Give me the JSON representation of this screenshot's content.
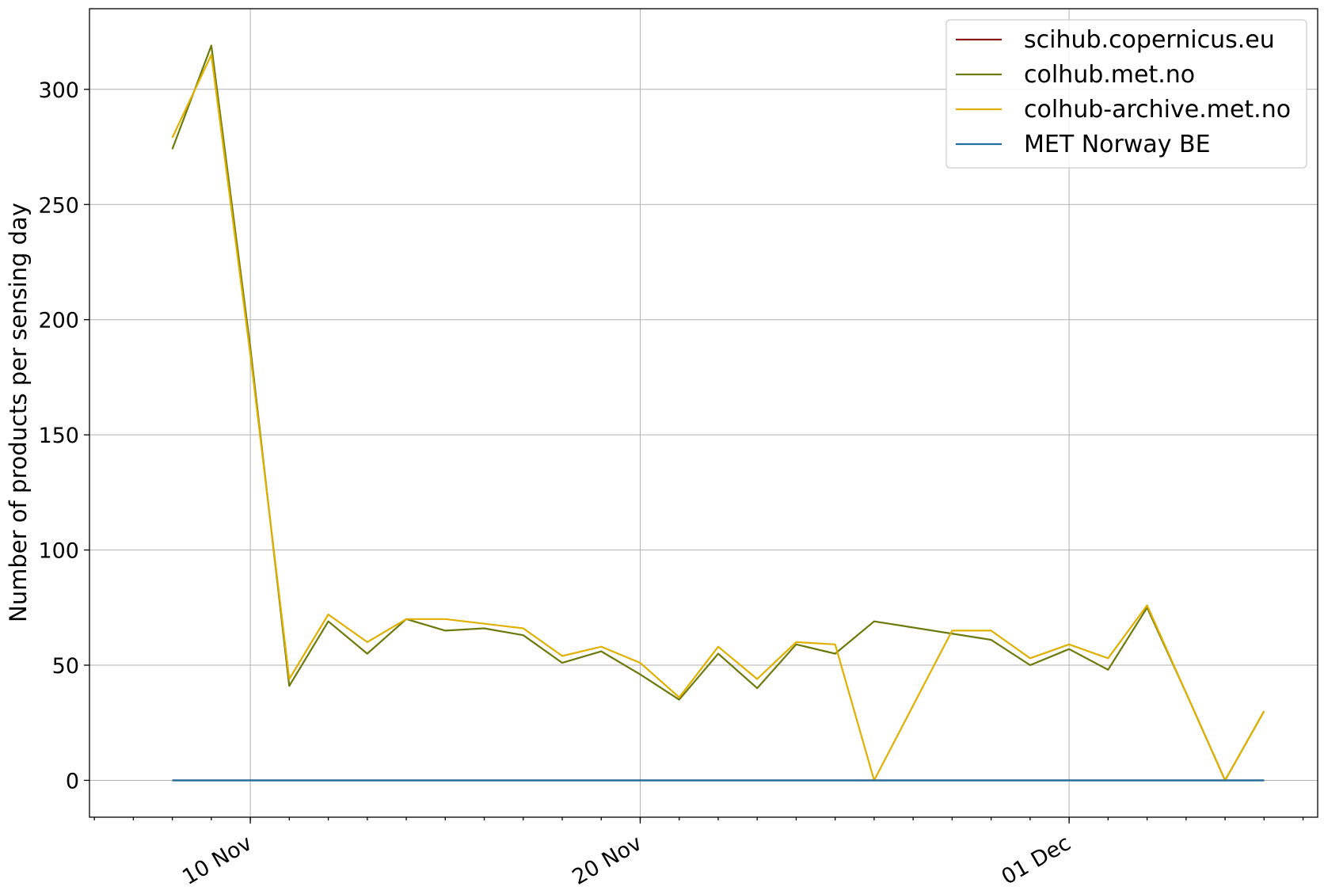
{
  "chart_data": {
    "type": "line",
    "title": "",
    "xlabel": "",
    "ylabel": "Number of products per sensing day",
    "x": [
      "2021-11-08",
      "2021-11-09",
      "2021-11-10",
      "2021-11-11",
      "2021-11-12",
      "2021-11-13",
      "2021-11-14",
      "2021-11-15",
      "2021-11-16",
      "2021-11-17",
      "2021-11-18",
      "2021-11-19",
      "2021-11-20",
      "2021-11-21",
      "2021-11-22",
      "2021-11-23",
      "2021-11-24",
      "2021-11-25",
      "2021-11-26",
      "2021-11-27",
      "2021-11-28",
      "2021-11-29",
      "2021-11-30",
      "2021-12-01",
      "2021-12-02",
      "2021-12-03",
      "2021-12-04",
      "2021-12-05",
      "2021-12-06"
    ],
    "x_ticks": [
      {
        "date": "2021-11-10",
        "label": "10 Nov"
      },
      {
        "date": "2021-11-20",
        "label": "20 Nov"
      },
      {
        "date": "2021-12-01",
        "label": "01 Dec"
      }
    ],
    "y_ticks": [
      0,
      50,
      100,
      150,
      200,
      250,
      300
    ],
    "ylim": [
      -16,
      335
    ],
    "xlim": [
      "2021-11-05T21:00",
      "2021-12-07T09:00"
    ],
    "grid": true,
    "legend_position": "top-right",
    "series": [
      {
        "name": "scihub.copernicus.eu",
        "color": "#8b1a1a",
        "values": [
          0,
          0,
          0,
          0,
          0,
          0,
          0,
          0,
          0,
          0,
          0,
          0,
          0,
          0,
          0,
          0,
          0,
          0,
          0,
          0,
          0,
          0,
          0,
          0,
          0,
          0,
          0,
          0,
          0
        ]
      },
      {
        "name": "colhub.met.no",
        "color": "#6b7a0a",
        "values": [
          274,
          319,
          188,
          41,
          69,
          55,
          70,
          65,
          66,
          63,
          51,
          56,
          46,
          35,
          55,
          40,
          59,
          55,
          69,
          null,
          null,
          61,
          50,
          57,
          48,
          75,
          38,
          0,
          30
        ]
      },
      {
        "name": "colhub-archive.met.no",
        "color": "#e0b000",
        "values": [
          279,
          315,
          185,
          44,
          72,
          60,
          70,
          70,
          null,
          66,
          54,
          58,
          51,
          36,
          58,
          44,
          60,
          59,
          0,
          null,
          65,
          65,
          53,
          59,
          53,
          76,
          38,
          0,
          30
        ]
      },
      {
        "name": "MET Norway BE",
        "color": "#1f6f9f",
        "values": [
          0,
          0,
          0,
          0,
          0,
          0,
          0,
          0,
          0,
          0,
          0,
          0,
          0,
          0,
          0,
          0,
          0,
          0,
          0,
          0,
          0,
          0,
          0,
          0,
          0,
          0,
          0,
          0,
          0
        ]
      }
    ]
  }
}
